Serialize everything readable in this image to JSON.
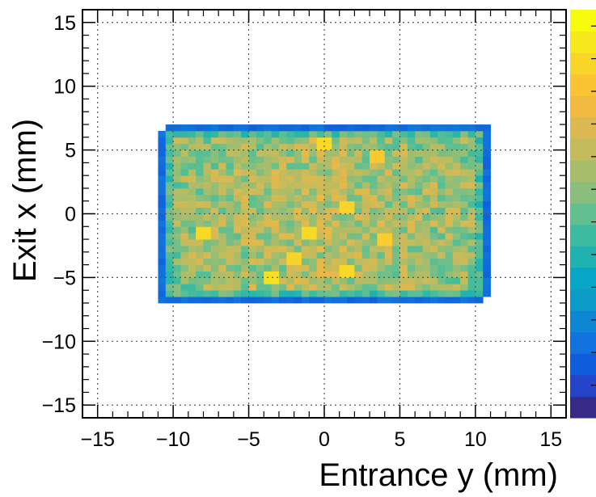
{
  "chart_data": {
    "type": "heatmap",
    "title": "",
    "xlabel": "Entrance y (mm)",
    "ylabel": "Exit x (mm)",
    "xlim": [
      -16,
      16
    ],
    "ylim": [
      -16,
      16
    ],
    "xticks": [
      "−15",
      "−10",
      "−5",
      "0",
      "5",
      "10",
      "15"
    ],
    "yticks": [
      "−15",
      "−10",
      "−5",
      "0",
      "5",
      "10",
      "15"
    ],
    "grid": true,
    "bin_width_mm": 0.5,
    "filled_region": {
      "x_range": [
        -11,
        11
      ],
      "y_range": [
        -7,
        7
      ]
    },
    "edge_intensity": 0.12,
    "interior_intensity_mean": 0.65,
    "hot_spots": [
      {
        "x": 0,
        "y": 5.5,
        "intensity": 0.9
      },
      {
        "x": 1.5,
        "y": 0.5,
        "intensity": 0.88
      },
      {
        "x": -1,
        "y": -1.5,
        "intensity": 0.9
      },
      {
        "x": -3.5,
        "y": -5,
        "intensity": 0.92
      },
      {
        "x": -8,
        "y": -1.5,
        "intensity": 0.9
      },
      {
        "x": 4,
        "y": -2,
        "intensity": 0.86
      },
      {
        "x": 3.5,
        "y": 4.5,
        "intensity": 0.85
      },
      {
        "x": 1.5,
        "y": -4.5,
        "intensity": 0.9
      },
      {
        "x": -2,
        "y": -3.5,
        "intensity": 0.88
      }
    ],
    "colorbar": {
      "colors": [
        "#352a87",
        "#2445c9",
        "#0f5cdd",
        "#1272de",
        "#0d87d2",
        "#0d9bc8",
        "#06a7c6",
        "#1fb2b1",
        "#3cbba0",
        "#62bf8f",
        "#89be7c",
        "#a8bd6b",
        "#c4bb5c",
        "#dcb950",
        "#f0b93f",
        "#fbc433",
        "#f8d627",
        "#f6e81c",
        "#f9fb0e"
      ]
    }
  }
}
